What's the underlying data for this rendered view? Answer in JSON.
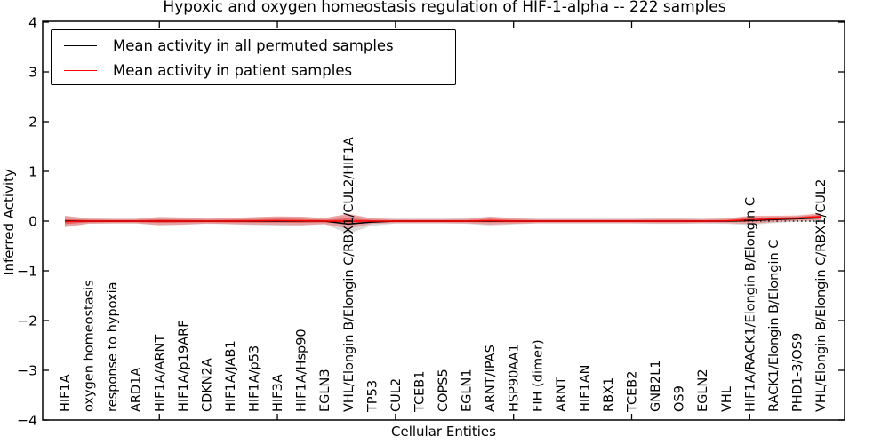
{
  "chart_data": {
    "type": "line",
    "title": "Hypoxic and oxygen homeostasis regulation of HIF-1-alpha -- 222 samples",
    "xlabel": "Cellular Entities",
    "ylabel": "Inferred Activity",
    "ylim": [
      -4,
      4
    ],
    "yticks": [
      4,
      3,
      2,
      1,
      0,
      -1,
      -2,
      -3,
      -4
    ],
    "x_major_tick_positions": [
      5,
      10,
      15,
      20,
      25,
      30
    ],
    "zero_line": 0,
    "grid": false,
    "legend_position": "upper left",
    "categories": [
      "HIF1A",
      "oxygen homeostasis",
      "response to hypoxia",
      "ARD1A",
      "HIF1A/ARNT",
      "HIF1A/p19ARF",
      "CDKN2A",
      "HIF1A/JAB1",
      "HIF1A/p53",
      "HIF3A",
      "HIF1A/Hsp90",
      "EGLN3",
      "VHL/Elongin B/Elongin C/RBX1/CUL2/HIF1A",
      "TP53",
      "CUL2",
      "TCEB1",
      "COPS5",
      "EGLN1",
      "ARNT/IPAS",
      "HSP90AA1",
      "FIH (dimer)",
      "ARNT",
      "HIF1AN",
      "RBX1",
      "TCEB2",
      "GNB2L1",
      "OS9",
      "EGLN2",
      "VHL",
      "HIF1A/RACK1/Elongin B/Elongin C",
      "RACK1/Elongin B/Elongin C",
      "PHD1-3/OS9",
      "VHL/Elongin B/Elongin C/RBX1/CUL2"
    ],
    "series": [
      {
        "name": "Mean activity in all permuted samples",
        "color": "#000000",
        "band_color": "rgba(125,125,125,0.28)",
        "mean": [
          0,
          0,
          0,
          0,
          0,
          0,
          0,
          0,
          0,
          0,
          0,
          0,
          -0.06,
          -0.02,
          0,
          0,
          0,
          0,
          0,
          0,
          0,
          0,
          0,
          0,
          0,
          0,
          0,
          0,
          0,
          0.01,
          0.03,
          0.045,
          0.065
        ],
        "std": [
          0.11,
          0.055,
          0.05,
          0.05,
          0.085,
          0.075,
          0.055,
          0.065,
          0.08,
          0.09,
          0.09,
          0.065,
          0.19,
          0.075,
          0.05,
          0.05,
          0.05,
          0.055,
          0.09,
          0.065,
          0.05,
          0.05,
          0.05,
          0.05,
          0.05,
          0.055,
          0.055,
          0.05,
          0.055,
          0.09,
          0.07,
          0.06,
          0.075
        ]
      },
      {
        "name": "Mean activity in patient samples",
        "color": "#ff0000",
        "band_color": "rgba(255,30,30,0.30)",
        "inner_band_color": "rgba(235,0,0,0.38)",
        "mean": [
          -0.01,
          0,
          0,
          0,
          0,
          0,
          0,
          0,
          0.005,
          0.01,
          0.005,
          0,
          0,
          0,
          0,
          0,
          0,
          0,
          0.01,
          0,
          0,
          0,
          0,
          0,
          0,
          0,
          0,
          0,
          0.005,
          0.025,
          0.045,
          0.06,
          0.09
        ],
        "std": [
          0.115,
          0.05,
          0.045,
          0.045,
          0.08,
          0.07,
          0.05,
          0.06,
          0.075,
          0.085,
          0.085,
          0.06,
          0.15,
          0.055,
          0.04,
          0.04,
          0.04,
          0.045,
          0.08,
          0.055,
          0.04,
          0.04,
          0.04,
          0.04,
          0.04,
          0.045,
          0.045,
          0.04,
          0.045,
          0.085,
          0.065,
          0.055,
          0.07
        ],
        "sem": [
          0.05,
          0.025,
          0.02,
          0.02,
          0.035,
          0.03,
          0.022,
          0.027,
          0.033,
          0.038,
          0.038,
          0.027,
          0.06,
          0.025,
          0.018,
          0.018,
          0.018,
          0.018,
          0.035,
          0.025,
          0.018,
          0.018,
          0.018,
          0.018,
          0.018,
          0.02,
          0.02,
          0.018,
          0.02,
          0.038,
          0.03,
          0.025,
          0.032
        ]
      }
    ]
  }
}
